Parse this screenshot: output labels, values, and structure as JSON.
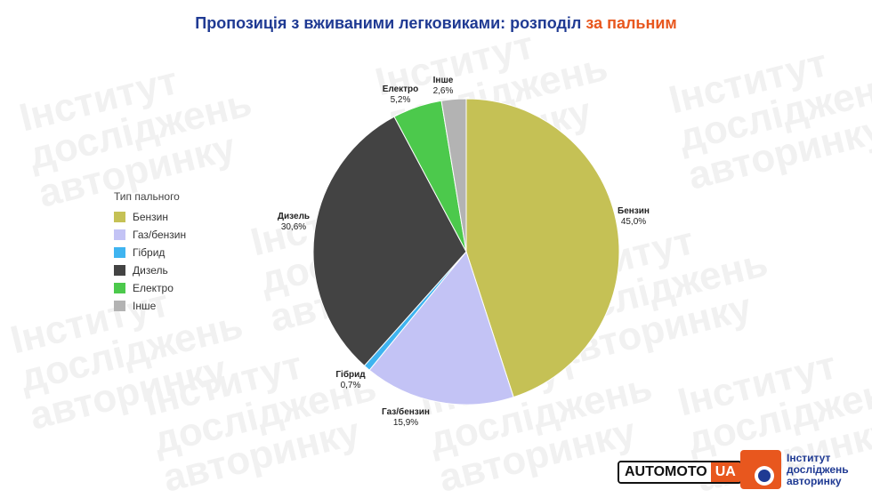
{
  "title": {
    "main": "Пропозиція з вживаними легковиками: розподіл ",
    "accent": "за пальним"
  },
  "legend": {
    "title": "Тип пального"
  },
  "watermark": {
    "line1": "Інститут",
    "line2": "досліджень",
    "line3": "авторинку"
  },
  "logos": {
    "automoto_a": "AUTOMOTO",
    "automoto_b": "UA",
    "institute_line1": "Інститут",
    "institute_line2": "досліджень",
    "institute_line3": "авторинку"
  },
  "colors": {
    "title": "#1f3a93",
    "accent": "#e8571e"
  },
  "chart_data": {
    "type": "pie",
    "title": "Пропозиція з вживаними легковиками: розподіл за пальним",
    "legend_title": "Тип пального",
    "legend_position": "left",
    "start_angle_deg": 0,
    "direction": "clockwise",
    "slices": [
      {
        "name": "Бензин",
        "value": 45.0,
        "label": "45,0%",
        "color": "#c5c155"
      },
      {
        "name": "Газ/бензин",
        "value": 15.9,
        "label": "15,9%",
        "color": "#c3c3f5"
      },
      {
        "name": "Гібрид",
        "value": 0.7,
        "label": "0,7%",
        "color": "#3fb4f0"
      },
      {
        "name": "Дизель",
        "value": 30.6,
        "label": "30,6%",
        "color": "#434343"
      },
      {
        "name": "Електро",
        "value": 5.2,
        "label": "5,2%",
        "color": "#4cc94c"
      },
      {
        "name": "Інше",
        "value": 2.6,
        "label": "2,6%",
        "color": "#b3b3b3"
      }
    ]
  }
}
